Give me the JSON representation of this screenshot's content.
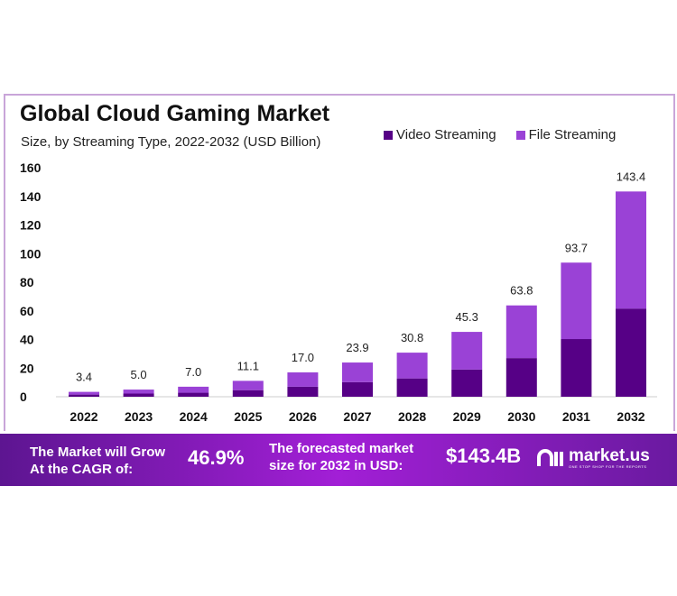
{
  "chart_data": {
    "type": "stacked-bar",
    "title": "Global Cloud Gaming Market",
    "subtitle": "Size, by Streaming Type, 2022-2032 (USD Billion)",
    "categories": [
      "2022",
      "2023",
      "2024",
      "2025",
      "2026",
      "2027",
      "2028",
      "2029",
      "2030",
      "2031",
      "2032"
    ],
    "series": [
      {
        "name": "Video Streaming",
        "color": "#560086",
        "values": [
          1.5,
          2.2,
          2.8,
          4.6,
          7.0,
          10.2,
          12.8,
          19.0,
          27.0,
          40.3,
          61.6
        ]
      },
      {
        "name": "File Streaming",
        "color": "#9a42d6",
        "values": [
          1.9,
          2.8,
          4.2,
          6.5,
          10.0,
          13.7,
          18.0,
          26.3,
          36.8,
          53.4,
          81.8
        ]
      }
    ],
    "totals": [
      "3.4",
      "5.0",
      "7.0",
      "11.1",
      "17.0",
      "23.9",
      "30.8",
      "45.3",
      "63.8",
      "93.7",
      "143.4"
    ],
    "ylim": [
      0,
      160
    ],
    "yticks": [
      "0",
      "20",
      "40",
      "60",
      "80",
      "100",
      "120",
      "140",
      "160"
    ],
    "legend": "top-right",
    "grid": false
  },
  "footer": {
    "cagr_label_1": "The Market will Grow",
    "cagr_label_2": "At the CAGR of:",
    "cagr_value": "46.9%",
    "forecast_label_1": "The forecasted market",
    "forecast_label_2": "size for 2032 in USD:",
    "forecast_value": "$143.4B",
    "logo_text": "market.us",
    "logo_tagline": "ONE STOP SHOP FOR THE REPORTS"
  }
}
